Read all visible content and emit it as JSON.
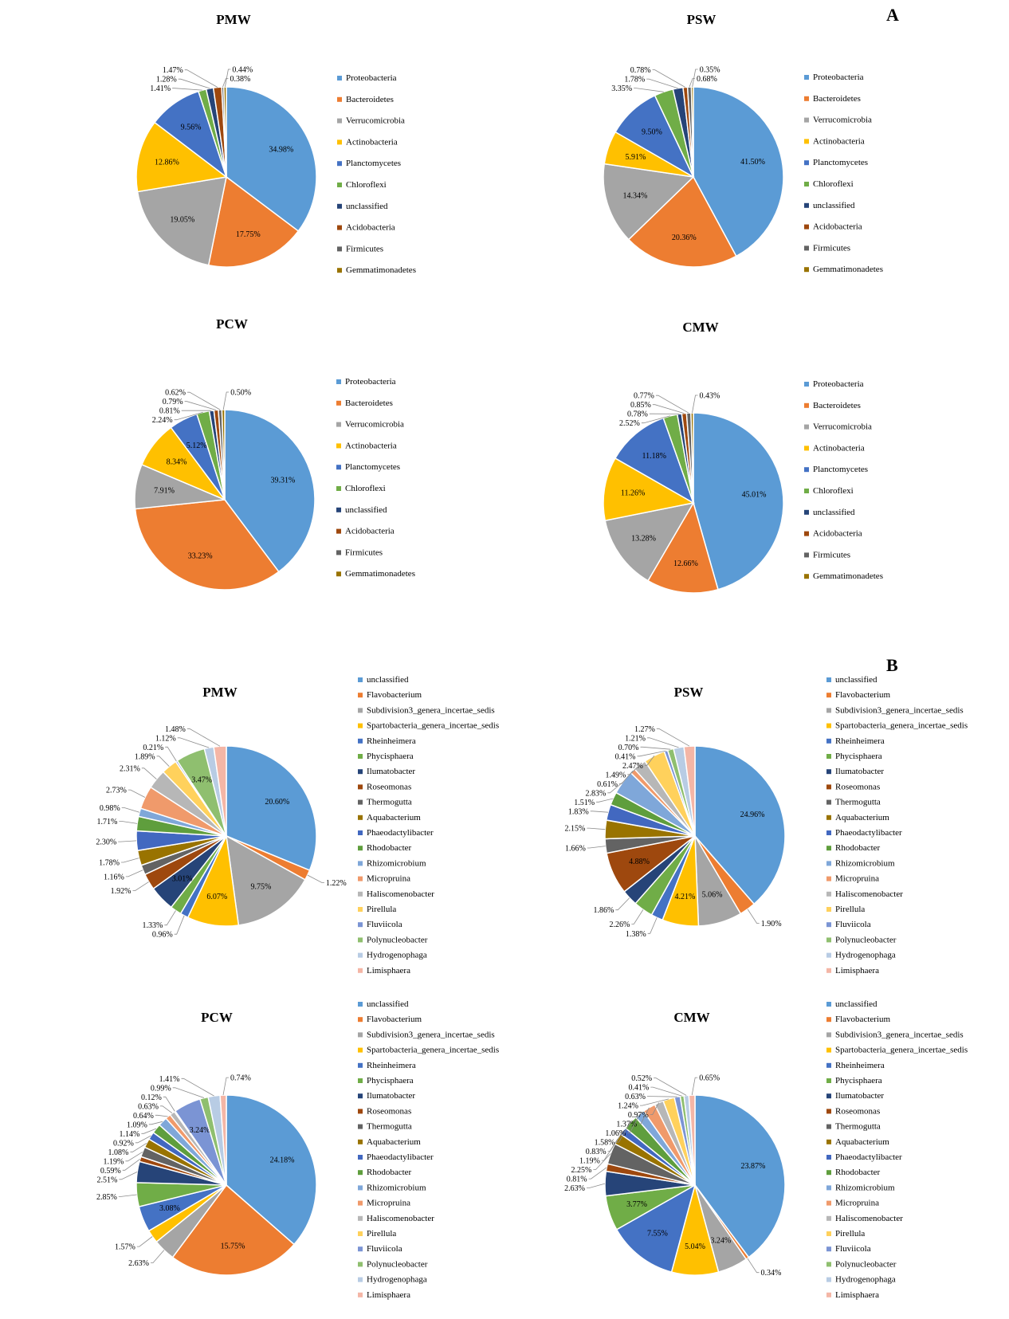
{
  "panel_labels": [
    "A",
    "B"
  ],
  "chart_data": [
    {
      "type": "pie",
      "panel": "A",
      "title": "PMW",
      "legend": "right",
      "categories": [
        "Proteobacteria",
        "Bacteroidetes",
        "Verrucomicrobia",
        "Actinobacteria",
        "Planctomycetes",
        "Chloroflexi",
        "unclassified",
        "Acidobacteria",
        "Firmicutes",
        "Gemmatimonadetes"
      ],
      "values": [
        34.98,
        17.75,
        19.05,
        12.86,
        9.56,
        1.41,
        1.28,
        1.47,
        0.38,
        0.44
      ],
      "labels": [
        "34.98%",
        "17.75%",
        "19.05%",
        "12.86%",
        "9.56%",
        "1.41%",
        "1.28%",
        "1.47%",
        "0.38%",
        "0.44%"
      ]
    },
    {
      "type": "pie",
      "panel": "A",
      "title": "PSW",
      "legend": "right",
      "categories": [
        "Proteobacteria",
        "Bacteroidetes",
        "Verrucomicrobia",
        "Actinobacteria",
        "Planctomycetes",
        "Chloroflexi",
        "unclassified",
        "Acidobacteria",
        "Firmicutes",
        "Gemmatimonadetes"
      ],
      "values": [
        41.5,
        20.36,
        14.34,
        5.91,
        9.5,
        3.35,
        1.78,
        0.78,
        0.68,
        0.35
      ],
      "labels": [
        "41.50%",
        "20.36%",
        "14.34%",
        "5.91%",
        "9.50%",
        "3.35%",
        "1.78%",
        "0.78%",
        "0.68%",
        "0.35%"
      ]
    },
    {
      "type": "pie",
      "panel": "A",
      "title": "PCW",
      "legend": "right",
      "categories": [
        "Proteobacteria",
        "Bacteroidetes",
        "Verrucomicrobia",
        "Actinobacteria",
        "Planctomycetes",
        "Chloroflexi",
        "unclassified",
        "Acidobacteria",
        "Firmicutes",
        "Gemmatimonadetes"
      ],
      "values": [
        39.31,
        33.23,
        7.91,
        8.34,
        5.12,
        2.24,
        0.81,
        0.79,
        0.62,
        0.5
      ],
      "labels": [
        "39.31%",
        "33.23%",
        "7.91%",
        "8.34%",
        "5.12%",
        "2.24%",
        "0.81%",
        "0.79%",
        "0.62%",
        "0.50%"
      ]
    },
    {
      "type": "pie",
      "panel": "A",
      "title": "CMW",
      "legend": "right",
      "categories": [
        "Proteobacteria",
        "Bacteroidetes",
        "Verrucomicrobia",
        "Actinobacteria",
        "Planctomycetes",
        "Chloroflexi",
        "unclassified",
        "Acidobacteria",
        "Firmicutes",
        "Gemmatimonadetes"
      ],
      "values": [
        45.01,
        12.66,
        13.28,
        11.26,
        11.18,
        2.52,
        0.78,
        0.85,
        0.77,
        0.43
      ],
      "labels": [
        "45.01%",
        "12.66%",
        "13.28%",
        "11.26%",
        "11.18%",
        "2.52%",
        "0.78%",
        "0.85%",
        "0.77%",
        "0.43%"
      ]
    },
    {
      "type": "pie",
      "panel": "B",
      "title": "PMW",
      "legend": "right",
      "categories": [
        "unclassified",
        "Flavobacterium",
        "Subdivision3_genera_incertae_sedis",
        "Spartobacteria_genera_incertae_sedis",
        "Rheinheimera",
        "Phycisphaera",
        "Ilumatobacter",
        "Roseomonas",
        "Thermogutta",
        "Aquabacterium",
        "Phaeodactylibacter",
        "Rhodobacter",
        "Rhizomicrobium",
        "Micropruina",
        "Haliscomenobacter",
        "Pirellula",
        "Fluviicola",
        "Polynucleobacter",
        "Hydrogenophaga",
        "Limisphaera"
      ],
      "values": [
        20.6,
        1.22,
        9.75,
        6.07,
        0.96,
        1.33,
        3.01,
        1.92,
        1.16,
        1.78,
        2.3,
        1.71,
        0.98,
        2.73,
        2.31,
        1.89,
        0.21,
        3.47,
        1.12,
        1.48
      ],
      "labels": [
        "20.60%",
        "1.22%",
        "9.75%",
        "6.07%",
        "0.96%",
        "1.33%",
        "3.01%",
        "1.92%",
        "1.16%",
        "1.78%",
        "2.30%",
        "1.71%",
        "0.98%",
        "2.73%",
        "2.31%",
        "1.89%",
        "0.21%",
        "3.47%",
        "1.12%",
        "1.48%"
      ]
    },
    {
      "type": "pie",
      "panel": "B",
      "title": "PSW",
      "legend": "right",
      "categories": [
        "unclassified",
        "Flavobacterium",
        "Subdivision3_genera_incertae_sedis",
        "Spartobacteria_genera_incertae_sedis",
        "Rheinheimera",
        "Phycisphaera",
        "Ilumatobacter",
        "Roseomonas",
        "Thermogutta",
        "Aquabacterium",
        "Phaeodactylibacter",
        "Rhodobacter",
        "Rhizomicrobium",
        "Micropruina",
        "Haliscomenobacter",
        "Pirellula",
        "Fluviicola",
        "Polynucleobacter",
        "Hydrogenophaga",
        "Limisphaera"
      ],
      "values": [
        24.96,
        1.9,
        5.06,
        4.21,
        1.38,
        2.26,
        1.86,
        4.88,
        1.66,
        2.15,
        1.83,
        1.51,
        2.83,
        0.61,
        1.49,
        2.47,
        0.41,
        0.7,
        1.21,
        1.27
      ],
      "labels": [
        "24.96%",
        "1.90%",
        "5.06%",
        "4.21%",
        "1.38%",
        "2.26%",
        "1.86%",
        "4.88%",
        "1.66%",
        "2.15%",
        "1.83%",
        "1.51%",
        "2.83%",
        "0.61%",
        "1.49%",
        "2.47%",
        "0.41%",
        "0.70%",
        "1.21%",
        "1.27%"
      ]
    },
    {
      "type": "pie",
      "panel": "B",
      "title": "PCW",
      "legend": "right",
      "categories": [
        "unclassified",
        "Flavobacterium",
        "Subdivision3_genera_incertae_sedis",
        "Spartobacteria_genera_incertae_sedis",
        "Rheinheimera",
        "Phycisphaera",
        "Ilumatobacter",
        "Roseomonas",
        "Thermogutta",
        "Aquabacterium",
        "Phaeodactylibacter",
        "Rhodobacter",
        "Rhizomicrobium",
        "Micropruina",
        "Haliscomenobacter",
        "Pirellula",
        "Fluviicola",
        "Polynucleobacter",
        "Hydrogenophaga",
        "Limisphaera"
      ],
      "values": [
        24.18,
        15.75,
        2.63,
        1.57,
        3.08,
        2.85,
        2.51,
        0.59,
        1.19,
        1.08,
        0.92,
        1.14,
        1.09,
        0.64,
        0.63,
        0.12,
        3.24,
        0.99,
        1.41,
        0.74
      ],
      "labels": [
        "24.18%",
        "15.75%",
        "2.63%",
        "1.57%",
        "3.08%",
        "2.85%",
        "2.51%",
        "0.59%",
        "1.19%",
        "1.08%",
        "0.92%",
        "1.14%",
        "1.09%",
        "0.64%",
        "0.63%",
        "0.12%",
        "3.24%",
        "0.99%",
        "1.41%",
        "0.74%"
      ]
    },
    {
      "type": "pie",
      "panel": "B",
      "title": "CMW",
      "legend": "right",
      "categories": [
        "unclassified",
        "Flavobacterium",
        "Subdivision3_genera_incertae_sedis",
        "Spartobacteria_genera_incertae_sedis",
        "Rheinheimera",
        "Phycisphaera",
        "Ilumatobacter",
        "Roseomonas",
        "Thermogutta",
        "Aquabacterium",
        "Phaeodactylibacter",
        "Rhodobacter",
        "Rhizomicrobium",
        "Micropruina",
        "Haliscomenobacter",
        "Pirellula",
        "Fluviicola",
        "Polynucleobacter",
        "Hydrogenophaga",
        "Limisphaera"
      ],
      "values": [
        23.87,
        0.34,
        3.24,
        5.04,
        7.55,
        3.77,
        2.63,
        0.81,
        2.25,
        1.19,
        0.83,
        1.58,
        1.06,
        1.37,
        0.97,
        1.24,
        0.63,
        0.41,
        0.52,
        0.65
      ],
      "labels": [
        "23.87%",
        "0.34%",
        "3.24%",
        "5.04%",
        "7.55%",
        "3.77%",
        "2.63%",
        "0.81%",
        "2.25%",
        "1.19%",
        "0.83%",
        "1.58%",
        "1.06%",
        "1.37%",
        "0.97%",
        "1.24%",
        "0.63%",
        "0.41%",
        "0.52%",
        "0.65%"
      ]
    }
  ],
  "colors": {
    "phylum": [
      "#5b9bd5",
      "#ed7d31",
      "#a5a5a5",
      "#ffc000",
      "#4472c4",
      "#70ad47",
      "#264478",
      "#9e480e",
      "#636363",
      "#997300"
    ],
    "genus": [
      "#5b9bd5",
      "#ed7d31",
      "#a5a5a5",
      "#ffc000",
      "#4472c4",
      "#70ad47",
      "#264478",
      "#9e480e",
      "#636363",
      "#997300",
      "#4268c0",
      "#5f9e3d",
      "#7fa7d9",
      "#f09a6b",
      "#b7b7b7",
      "#ffd15c",
      "#7b94d4",
      "#8fbf6f",
      "#b8cce4",
      "#f4b6a6"
    ]
  }
}
